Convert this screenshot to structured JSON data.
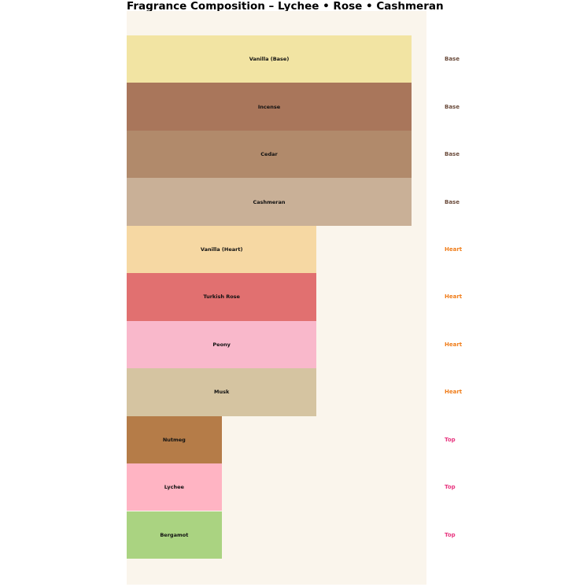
{
  "chart_data": {
    "type": "bar",
    "orientation": "horizontal",
    "title": "Fragrance Composition – Lychee • Rose • Cashmeran",
    "categories": [
      "Vanilla (Base)",
      "Incense",
      "Cedar",
      "Cashmeran",
      "Vanilla (Heart)",
      "Turkish Rose",
      "Peony",
      "Musk",
      "Nutmeg",
      "Lychee",
      "Bergamot"
    ],
    "values": [
      3,
      3,
      3,
      3,
      2,
      2,
      2,
      2,
      1,
      1,
      1
    ],
    "value_note": "relative bar widths read from plot; Base:Heart:Top = 3:2:1",
    "groups": [
      "Base",
      "Base",
      "Base",
      "Base",
      "Heart",
      "Heart",
      "Heart",
      "Heart",
      "Top",
      "Top",
      "Top"
    ],
    "bar_colors": [
      "#f2e4a3",
      "#a9765b",
      "#b18a6b",
      "#c9b097",
      "#f6d8a3",
      "#e17070",
      "#f9b8cb",
      "#d5c4a1",
      "#b57c48",
      "#ffb4c3",
      "#aad381"
    ],
    "group_label_colors": {
      "Base": "#6b4c3c",
      "Heart": "#f07d1a",
      "Top": "#e8357f"
    },
    "plot_background": "#faf5ec",
    "page_background": "#ffffff",
    "xlim": [
      0,
      3.15
    ],
    "grid": false,
    "legend": "none; group labels (Base/Heart/Top) shown in right margin aligned to each bar",
    "bar_label_color": "#111111"
  }
}
